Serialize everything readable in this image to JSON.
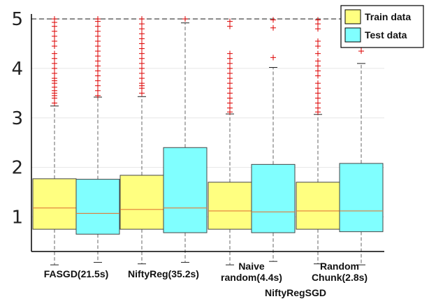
{
  "chart_data": {
    "type": "box",
    "ylim": [
      0.3,
      5.1
    ],
    "yticks": [
      1,
      2,
      3,
      4,
      5
    ],
    "grid": "horizontal",
    "legend_placement": "top-right",
    "reference_line": 5,
    "colors": {
      "train": "#ffff80",
      "test": "#80ffff",
      "median": "#e07b39",
      "outlier": "#dd0000",
      "whisker": "#666666",
      "grid": "#e6e6e6"
    },
    "legend": [
      {
        "label": "Train data",
        "series": "train"
      },
      {
        "label": "Test data",
        "series": "test"
      }
    ],
    "groups": [
      {
        "label_lines": [
          "FASGD(21.5s)"
        ]
      },
      {
        "label_lines": [
          "NiftyReg(35.2s)"
        ]
      },
      {
        "label_lines": [
          "Naive",
          "random(4.4s)"
        ]
      },
      {
        "label_lines": [
          "Random",
          "Chunk(2.8s)"
        ]
      }
    ],
    "group_caption": "NiftyRegSGD",
    "boxes": [
      {
        "group": 0,
        "series": "train",
        "min": 0.03,
        "q1": 0.75,
        "median": 1.18,
        "q3": 1.77,
        "max": 3.24,
        "outliers": [
          3.3,
          3.4,
          3.45,
          3.5,
          3.55,
          3.62,
          3.7,
          3.75,
          3.8,
          3.9,
          4.0,
          4.1,
          4.2,
          4.3,
          4.45,
          4.55,
          4.65,
          4.75,
          4.85,
          4.93,
          5.0
        ]
      },
      {
        "group": 0,
        "series": "test",
        "min": 0.08,
        "q1": 0.65,
        "median": 1.07,
        "q3": 1.76,
        "max": 3.42,
        "outliers": [
          3.45,
          3.55,
          3.65,
          3.75,
          3.85,
          3.95,
          4.05,
          4.15,
          4.25,
          4.35,
          4.45,
          4.55,
          4.65,
          4.75,
          4.85,
          4.95,
          5.0
        ]
      },
      {
        "group": 1,
        "series": "train",
        "min": 0.05,
        "q1": 0.75,
        "median": 1.15,
        "q3": 1.84,
        "max": 3.43,
        "outliers": [
          3.5,
          3.6,
          3.65,
          3.7,
          3.8,
          3.9,
          4.0,
          4.1,
          4.2,
          4.3,
          4.4,
          4.5,
          4.6,
          4.7,
          4.8,
          4.9,
          5.0
        ]
      },
      {
        "group": 1,
        "series": "test",
        "min": 0.08,
        "q1": 0.68,
        "median": 1.18,
        "q3": 2.4,
        "max": 4.92,
        "outliers": [
          5.0
        ]
      },
      {
        "group": 2,
        "series": "train",
        "min": 0.03,
        "q1": 0.75,
        "median": 1.12,
        "q3": 1.7,
        "max": 3.08,
        "outliers": [
          3.12,
          3.2,
          3.3,
          3.4,
          3.5,
          3.6,
          3.7,
          3.8,
          3.9,
          4.0,
          4.1,
          4.2,
          4.3,
          4.85,
          4.95
        ]
      },
      {
        "group": 2,
        "series": "test",
        "min": 0.1,
        "q1": 0.68,
        "median": 1.1,
        "q3": 2.06,
        "max": 4.02,
        "outliers": [
          4.22,
          4.82,
          4.98
        ]
      },
      {
        "group": 3,
        "series": "train",
        "min": 0.05,
        "q1": 0.75,
        "median": 1.12,
        "q3": 1.7,
        "max": 3.07,
        "outliers": [
          3.12,
          3.2,
          3.3,
          3.4,
          3.5,
          3.6,
          3.7,
          3.85,
          3.95,
          4.05,
          4.15,
          4.3,
          4.45,
          4.55,
          4.8,
          4.9,
          4.98
        ]
      },
      {
        "group": 3,
        "series": "test",
        "min": 0.03,
        "q1": 0.7,
        "median": 1.12,
        "q3": 2.08,
        "max": 4.1,
        "outliers": [
          4.35,
          4.45
        ]
      }
    ]
  }
}
